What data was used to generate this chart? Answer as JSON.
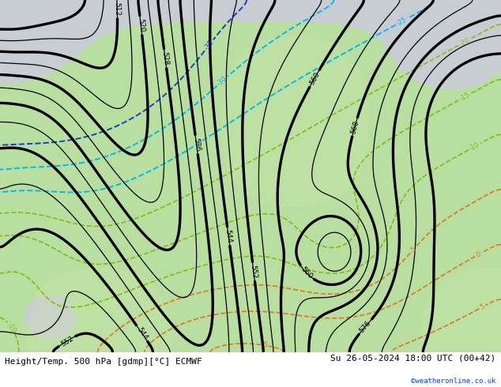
{
  "title_left": "Height/Temp. 500 hPa [gdmp][°C] ECMWF",
  "title_right": "Su 26-05-2024 18:00 UTC (00+42)",
  "watermark": "©weatheronline.co.uk",
  "bg_color_ocean": "#c8cdd4",
  "bg_color_land": "#b8dfa0",
  "bg_color_land2": "#c8e8a8",
  "contour_color_height": "#000000",
  "contour_color_temp_warm": "#e07818",
  "contour_color_temp_cold_green": "#88bb10",
  "contour_color_cold_cyan": "#00bbee",
  "contour_color_cold_blue": "#1144cc",
  "contour_lw_thin": 0.9,
  "contour_lw_thick": 2.4,
  "label_fontsize": 6.5,
  "title_fontsize": 8,
  "fig_width": 6.34,
  "fig_height": 4.9,
  "dpi": 100
}
